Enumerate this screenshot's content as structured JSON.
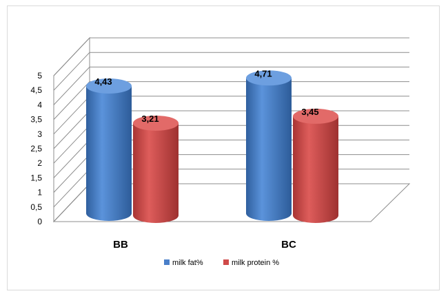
{
  "chart_data": {
    "type": "bar",
    "style": "3d-cylinder",
    "categories": [
      "BB",
      "BC"
    ],
    "series": [
      {
        "name": "milk fat%",
        "values": [
          4.43,
          4.71
        ],
        "labels": [
          "4,43",
          "4,71"
        ],
        "color": "#4a7fc9"
      },
      {
        "name": "milk protein %",
        "values": [
          3.21,
          3.45
        ],
        "labels": [
          "3,21",
          "3,45"
        ],
        "color": "#cf4a49"
      }
    ],
    "y_ticks": [
      "0",
      "0,5",
      "1",
      "1,5",
      "2",
      "2,5",
      "3",
      "3,5",
      "4",
      "4,5",
      "5"
    ],
    "ylim": [
      0,
      5
    ],
    "grid": true,
    "legend_position": "bottom",
    "title": "",
    "xlabel": "",
    "ylabel": ""
  }
}
